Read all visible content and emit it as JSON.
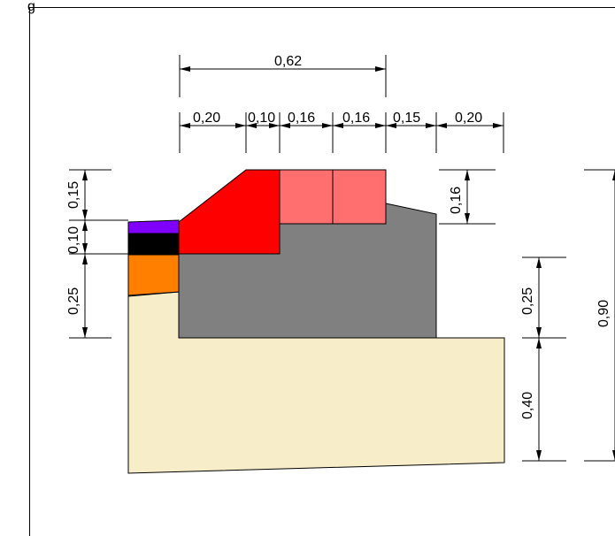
{
  "corner_caption": "g",
  "dimensions": {
    "top_total": "0,62",
    "top_segments": [
      "0,20",
      "0,10",
      "0,16",
      "0,16",
      "0,15",
      "0,20"
    ],
    "left_segments": [
      "0,15",
      "0,10",
      "0,25"
    ],
    "right_small": "0,16",
    "right_mid_upper": "0,25",
    "right_mid_lower": "0,40",
    "right_total": "0,90"
  },
  "colors": {
    "soil": "#f7edc8",
    "gray_base": "#808080",
    "red_block": "#ff0000",
    "pink_blocks": "#ff6f6f",
    "purple_layer": "#8000ff",
    "black_layer": "#000000",
    "orange_layer": "#ff8000"
  }
}
